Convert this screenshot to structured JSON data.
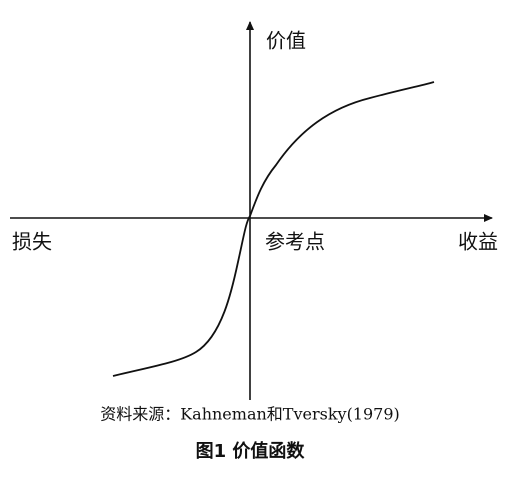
{
  "axes": {
    "y_label": "价值",
    "x_left_label": "损失",
    "x_right_label": "收益",
    "origin_label": "参考点"
  },
  "source": "资料来源：Kahneman和Tversky(1979)",
  "caption": "图1  价值函数"
}
